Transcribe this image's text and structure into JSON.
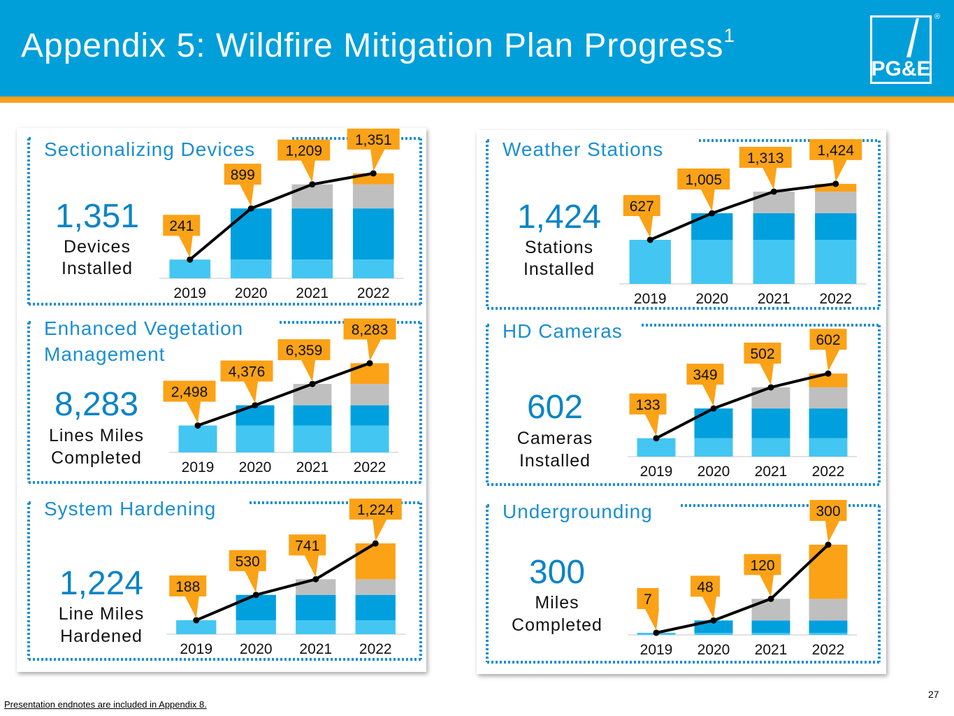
{
  "header": {
    "title": "Appendix 5: Wildfire Mitigation Plan Progress",
    "title_sup": "1",
    "logo_text": "PG&E",
    "reg_mark": "®"
  },
  "colors": {
    "header_bg": "#009fda",
    "stripe": "#f9a01b",
    "dotted": "#1a8fd0",
    "panel_title": "#1a8fd0",
    "big_number": "#0b84c5",
    "seg_2019": "#43c6f2",
    "seg_2020": "#00a0de",
    "seg_2021": "#bfbfbf",
    "seg_2022": "#fba217",
    "label_box": "#fba217"
  },
  "footer": {
    "endnote": "Presentation endnotes are included in Appendix 8.",
    "page_number": "27"
  },
  "chart_data": [
    {
      "type": "bar",
      "title": "Sectionalizing Devices",
      "big_number": "1,351",
      "caption": [
        "Devices",
        "Installed"
      ],
      "categories": [
        "2019",
        "2020",
        "2021",
        "2022"
      ],
      "increments": [
        241,
        658,
        310,
        142
      ],
      "cumulative": [
        241,
        899,
        1209,
        1351
      ],
      "data_labels": [
        "241",
        "899",
        "1,209",
        "1,351"
      ],
      "ylim": [
        0,
        1500
      ]
    },
    {
      "type": "bar",
      "title": "Weather Stations",
      "big_number": "1,424",
      "caption": [
        "Stations",
        "Installed"
      ],
      "categories": [
        "2019",
        "2020",
        "2021",
        "2022"
      ],
      "increments": [
        627,
        378,
        308,
        111
      ],
      "cumulative": [
        627,
        1005,
        1313,
        1424
      ],
      "data_labels": [
        "627",
        "1,005",
        "1,313",
        "1,424"
      ],
      "ylim": [
        0,
        1500
      ]
    },
    {
      "type": "bar",
      "title": "Enhanced Vegetation Management",
      "big_number": "8,283",
      "caption": [
        "Lines Miles",
        "Completed"
      ],
      "categories": [
        "2019",
        "2020",
        "2021",
        "2022"
      ],
      "increments": [
        2498,
        1878,
        1983,
        1924
      ],
      "cumulative": [
        2498,
        4376,
        6359,
        8283
      ],
      "data_labels": [
        "2,498",
        "4,376",
        "6,359",
        "8,283"
      ],
      "ylim": [
        0,
        10000
      ]
    },
    {
      "type": "bar",
      "title": "HD Cameras",
      "big_number": "602",
      "caption": [
        "Cameras",
        "Installed"
      ],
      "categories": [
        "2019",
        "2020",
        "2021",
        "2022"
      ],
      "increments": [
        133,
        216,
        153,
        100
      ],
      "cumulative": [
        133,
        349,
        502,
        602
      ],
      "data_labels": [
        "133",
        "349",
        "502",
        "602"
      ],
      "ylim": [
        0,
        700
      ]
    },
    {
      "type": "bar",
      "title": "System Hardening",
      "big_number": "1,224",
      "caption": [
        "Line Miles",
        "Hardened"
      ],
      "categories": [
        "2019",
        "2020",
        "2021",
        "2022"
      ],
      "increments": [
        188,
        342,
        211,
        483
      ],
      "cumulative": [
        188,
        530,
        741,
        1224
      ],
      "data_labels": [
        "188",
        "530",
        "741",
        "1,224"
      ],
      "ylim": [
        0,
        1500
      ]
    },
    {
      "type": "bar",
      "title": "Undergrounding",
      "big_number": "300",
      "caption": [
        "Miles",
        "Completed"
      ],
      "categories": [
        "2019",
        "2020",
        "2021",
        "2022"
      ],
      "increments": [
        7,
        41,
        72,
        180
      ],
      "cumulative": [
        7,
        48,
        120,
        300
      ],
      "data_labels": [
        "7",
        "48",
        "120",
        "300"
      ],
      "ylim": [
        0,
        350
      ]
    }
  ]
}
